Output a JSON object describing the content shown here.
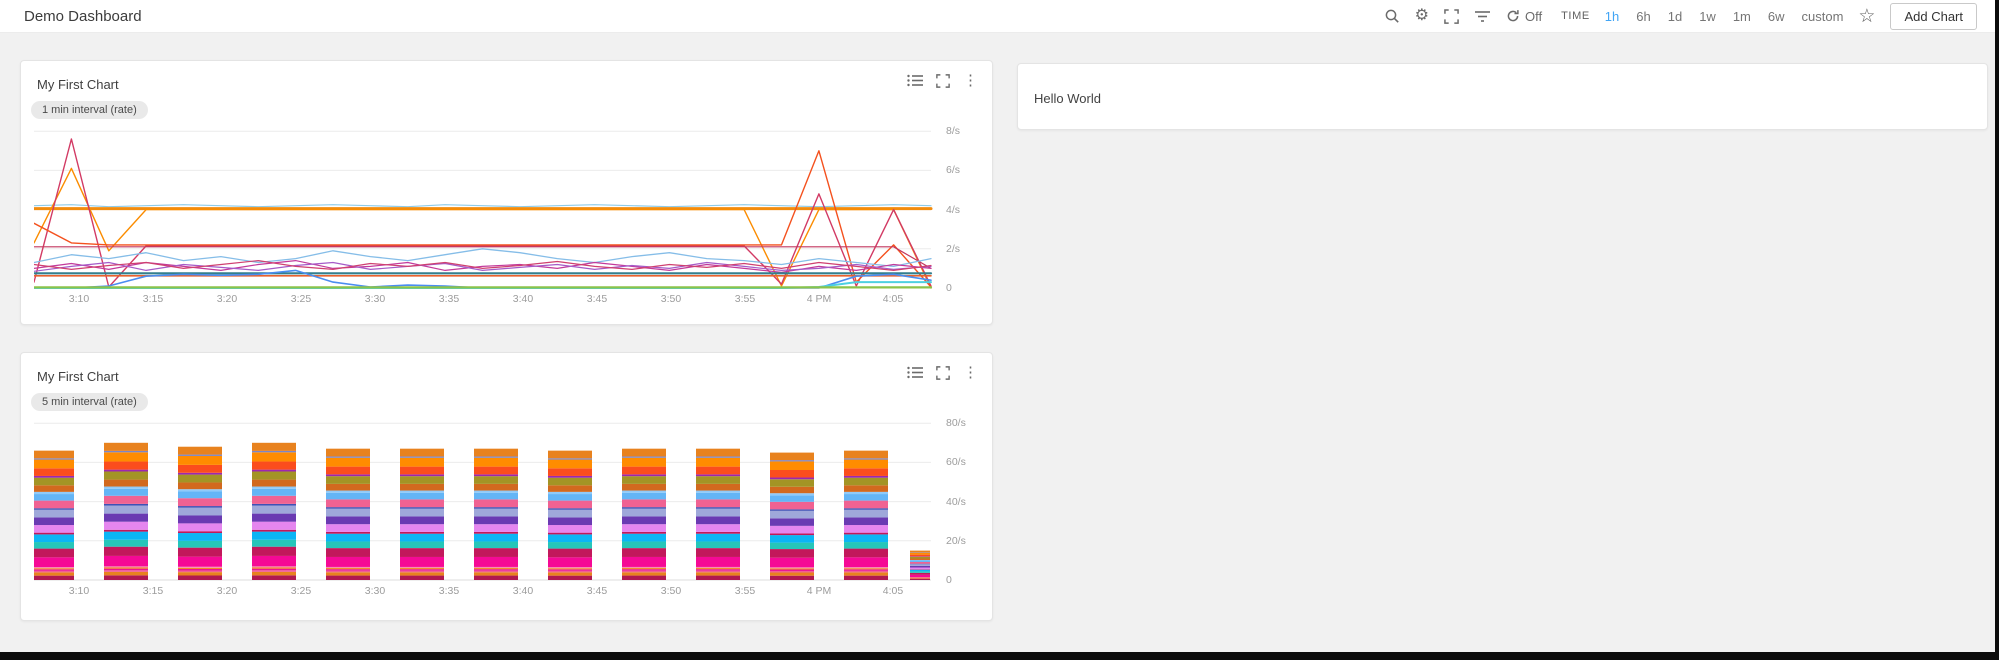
{
  "topbar": {
    "title": "Demo Dashboard",
    "icons": [
      "search-icon",
      "settings-gear-icon",
      "fullscreen-icon",
      "filter-icon"
    ],
    "refresh_label": "Off",
    "time_label": "TIME",
    "ranges": [
      "1h",
      "6h",
      "1d",
      "1w",
      "1m",
      "6w",
      "custom"
    ],
    "active_range": "1h",
    "active_range_color": "#42a5f5",
    "add_chart_label": "Add Chart"
  },
  "glyphs": {
    "gear": "⚙",
    "star": "☆",
    "kebab": "⋮"
  },
  "cards": {
    "chart_action_icons": [
      "legend-list-icon",
      "maximize-icon",
      "kebab-menu-icon"
    ],
    "text_card": {
      "text": "Hello World"
    }
  },
  "chart_data": [
    {
      "type": "line",
      "title": "My First Chart",
      "subtitle": "1 min interval (rate)",
      "x_ticks": [
        "3:10",
        "3:15",
        "3:20",
        "3:25",
        "3:30",
        "3:35",
        "3:40",
        "3:45",
        "3:50",
        "3:55",
        "4 PM",
        "4:05"
      ],
      "x_range": [
        "3:07",
        "4:07"
      ],
      "y_ticks": [
        "8/s",
        "6/s",
        "4/s",
        "2/s",
        "0"
      ],
      "ylim": [
        0,
        8
      ],
      "grid": true,
      "legend": "none",
      "series": [
        {
          "name": "pale-blue-top",
          "color": "#8ecbe8",
          "width": 1.2,
          "values": [
            4.2,
            4.25,
            4.15,
            4.2,
            4.25,
            4.2,
            4.15,
            4.2,
            4.25,
            4.2,
            4.15,
            4.25,
            4.2,
            4.15,
            4.2,
            4.25,
            4.2,
            4.15,
            4.2,
            4.25,
            4.2,
            4.15,
            4.2,
            4.25,
            4.2
          ]
        },
        {
          "name": "orange-thick",
          "color": "#f28c0e",
          "width": 3,
          "values": [
            4.05,
            4.05,
            4.05,
            4.05,
            4.05,
            4.05,
            4.05,
            4.05,
            4.05,
            4.05,
            4.05,
            4.05,
            4.05,
            4.05,
            4.05,
            4.05,
            4.05,
            4.05,
            4.05,
            4.05,
            4.05,
            4.05,
            4.05,
            4.05,
            4.05
          ]
        },
        {
          "name": "orange-spiky",
          "color": "#fb8c00",
          "width": 1.4,
          "values": [
            2.3,
            6.1,
            1.9,
            4,
            4,
            4,
            4,
            4,
            4,
            4,
            4,
            4,
            4,
            4,
            4,
            4,
            4,
            4,
            4,
            4,
            0.1,
            4,
            4,
            4,
            0
          ]
        },
        {
          "name": "crimson-spiky",
          "color": "#d23a64",
          "width": 1.4,
          "values": [
            0.3,
            7.6,
            0.05,
            2.15,
            2.15,
            2.15,
            2.15,
            2.15,
            2.15,
            2.15,
            2.15,
            2.15,
            2.15,
            2.15,
            2.15,
            2.15,
            2.15,
            2.15,
            2.15,
            2.15,
            0.2,
            4.8,
            0.1,
            4,
            0.1
          ]
        },
        {
          "name": "orange-red-mid",
          "color": "#f4511e",
          "width": 1.4,
          "values": [
            3.3,
            2.3,
            2.2,
            2.2,
            2.2,
            2.2,
            2.2,
            2.2,
            2.2,
            2.2,
            2.2,
            2.2,
            2.2,
            2.2,
            2.2,
            2.2,
            2.2,
            2.2,
            2.2,
            2.2,
            2.2,
            7,
            0.3,
            2.2,
            0.05
          ]
        },
        {
          "name": "crimson-flat",
          "color": "#c2365e",
          "width": 1.2,
          "values": [
            2.1,
            2.1,
            2.1,
            2.1,
            2.1,
            2.1,
            2.1,
            2.1,
            2.1,
            2.1,
            2.1,
            2.1,
            2.1,
            2.1,
            2.1,
            2.1,
            2.1,
            2.1,
            2.1,
            2.1,
            2.1,
            2.1,
            2.1,
            2.1,
            1.0
          ]
        },
        {
          "name": "light-blue-wavy",
          "color": "#85bde8",
          "width": 1.3,
          "values": [
            1.3,
            1.7,
            1.5,
            1.8,
            1.4,
            1.6,
            1.3,
            1.5,
            1.9,
            1.6,
            1.4,
            1.7,
            2.0,
            1.8,
            1.5,
            1.3,
            1.6,
            1.8,
            1.5,
            1.4,
            1.2,
            1.5,
            1.3,
            1.1,
            1.5
          ]
        },
        {
          "name": "magenta-wavy",
          "color": "#c23a9b",
          "width": 1.2,
          "values": [
            1.0,
            1.25,
            0.95,
            1.3,
            1.1,
            0.9,
            1.2,
            1.4,
            1.0,
            1.1,
            1.3,
            0.9,
            1.1,
            1.2,
            1.0,
            1.3,
            1.1,
            0.9,
            1.2,
            1.0,
            0.8,
            1.1,
            0.9,
            1.2,
            1.0
          ]
        },
        {
          "name": "purple-wavy",
          "color": "#a55bc8",
          "width": 1.2,
          "values": [
            0.85,
            1.1,
            1.3,
            0.9,
            1.2,
            1.05,
            0.9,
            1.15,
            1.3,
            0.95,
            1.1,
            1.25,
            0.9,
            1.05,
            1.2,
            0.95,
            1.15,
            1.0,
            1.3,
            1.1,
            0.9,
            1.0,
            1.2,
            0.95,
            1.1
          ]
        },
        {
          "name": "crimson-wavy",
          "color": "#cf4070",
          "width": 1.2,
          "values": [
            1.2,
            0.95,
            1.15,
            1.3,
            1.0,
            1.2,
            1.4,
            1.1,
            0.95,
            1.25,
            1.1,
            1.3,
            1.0,
            1.15,
            1.35,
            1.1,
            0.95,
            1.2,
            1.05,
            1.25,
            1.0,
            1.3,
            1.1,
            0.9,
            1.15
          ]
        },
        {
          "name": "teal-flat",
          "color": "#337f8d",
          "width": 2.2,
          "values": [
            0.75,
            0.75,
            0.75,
            0.75,
            0.75,
            0.75,
            0.75,
            0.75,
            0.75,
            0.75,
            0.75,
            0.75,
            0.75,
            0.75,
            0.75,
            0.75,
            0.75,
            0.75,
            0.75,
            0.75,
            0.75,
            0.75,
            0.75,
            0.75,
            0.75
          ]
        },
        {
          "name": "orange-red-low",
          "color": "#e8622d",
          "width": 1.6,
          "values": [
            0.62,
            0.62,
            0.62,
            0.62,
            0.62,
            0.62,
            0.62,
            0.62,
            0.62,
            0.62,
            0.62,
            0.62,
            0.62,
            0.62,
            0.62,
            0.62,
            0.62,
            0.62,
            0.62,
            0.62,
            0.62,
            0.62,
            0.62,
            0.62,
            0.62
          ]
        },
        {
          "name": "blue-episodic",
          "color": "#4a8df0",
          "width": 1.6,
          "values": [
            0,
            0,
            0.1,
            0.6,
            0.7,
            0.65,
            0.7,
            0.9,
            0.3,
            0.05,
            0.15,
            0.1,
            0,
            0,
            0,
            0,
            0,
            0,
            0,
            0,
            0,
            0,
            0.6,
            0.7,
            0.4
          ]
        },
        {
          "name": "cyan-end",
          "color": "#4dd0e1",
          "width": 2,
          "values": [
            0,
            0,
            0,
            0,
            0,
            0,
            0,
            0,
            0,
            0,
            0,
            0,
            0,
            0,
            0,
            0,
            0,
            0,
            0,
            0,
            0,
            0.05,
            0.3,
            0.3,
            0.3
          ]
        },
        {
          "name": "green-baseline",
          "color": "#8bc34a",
          "width": 2.2,
          "values": [
            0.03,
            0.03,
            0.03,
            0.03,
            0.03,
            0.03,
            0.03,
            0.03,
            0.03,
            0.03,
            0.03,
            0.03,
            0.03,
            0.03,
            0.03,
            0.03,
            0.03,
            0.03,
            0.03,
            0.03,
            0.03,
            0.03,
            0.03,
            0.03,
            0.03
          ]
        }
      ]
    },
    {
      "type": "stacked-bar",
      "title": "My First Chart",
      "subtitle": "5 min interval (rate)",
      "x_ticks": [
        "3:10",
        "3:15",
        "3:20",
        "3:25",
        "3:30",
        "3:35",
        "3:40",
        "3:45",
        "3:50",
        "3:55",
        "4 PM",
        "4:05"
      ],
      "x_range": [
        "3:07",
        "4:07"
      ],
      "y_ticks": [
        "80/s",
        "60/s",
        "40/s",
        "20/s",
        "0"
      ],
      "ylim": [
        0,
        80
      ],
      "grid": true,
      "legend": "none",
      "bar_totals": [
        66,
        70,
        68,
        70,
        67,
        67,
        67,
        66,
        67,
        67,
        65,
        66,
        15
      ],
      "segments": [
        {
          "name": "crimson-bottom",
          "color": "#b01950",
          "weight": 2.0
        },
        {
          "name": "orange-low",
          "color": "#e8821e",
          "weight": 1.5
        },
        {
          "name": "pink-thin",
          "color": "#f06292",
          "weight": 0.7
        },
        {
          "name": "magenta-thin",
          "color": "#ec1393",
          "weight": 0.7
        },
        {
          "name": "orange-thin",
          "color": "#f58220",
          "weight": 0.5
        },
        {
          "name": "rose-thin",
          "color": "#f48fb1",
          "weight": 0.5
        },
        {
          "name": "magenta",
          "color": "#f50995",
          "weight": 4.5
        },
        {
          "name": "crimson",
          "color": "#c2185b",
          "weight": 4.0
        },
        {
          "name": "turquoise",
          "color": "#26c6b9",
          "weight": 3.0
        },
        {
          "name": "azure",
          "color": "#0cb5f5",
          "weight": 3.5
        },
        {
          "name": "crimson-line",
          "color": "#c2185b",
          "weight": 0.8
        },
        {
          "name": "violet",
          "color": "#e586ef",
          "weight": 3.5
        },
        {
          "name": "purple",
          "color": "#6a3ab2",
          "weight": 3.5
        },
        {
          "name": "periwinkle",
          "color": "#9fa8da",
          "weight": 3.5
        },
        {
          "name": "navy-line",
          "color": "#3f51b5",
          "weight": 0.7
        },
        {
          "name": "salmon-pink",
          "color": "#f06292",
          "weight": 3.5
        },
        {
          "name": "sky-blue",
          "color": "#64b5f6",
          "weight": 3.0
        },
        {
          "name": "light-blue-line",
          "color": "#90caf9",
          "weight": 1.0
        },
        {
          "name": "brown-orange",
          "color": "#d2691e",
          "weight": 3.0
        },
        {
          "name": "olive",
          "color": "#a39425",
          "weight": 3.5
        },
        {
          "name": "purple-line",
          "color": "#9c27b0",
          "weight": 0.8
        },
        {
          "name": "orange-red",
          "color": "#fb4d1d",
          "weight": 3.5
        },
        {
          "name": "bright-orange",
          "color": "#ff8c00",
          "weight": 4.0
        },
        {
          "name": "slate-line",
          "color": "#7b86c8",
          "weight": 0.6
        },
        {
          "name": "orange-top",
          "color": "#e8821e",
          "weight": 3.5
        }
      ]
    }
  ]
}
